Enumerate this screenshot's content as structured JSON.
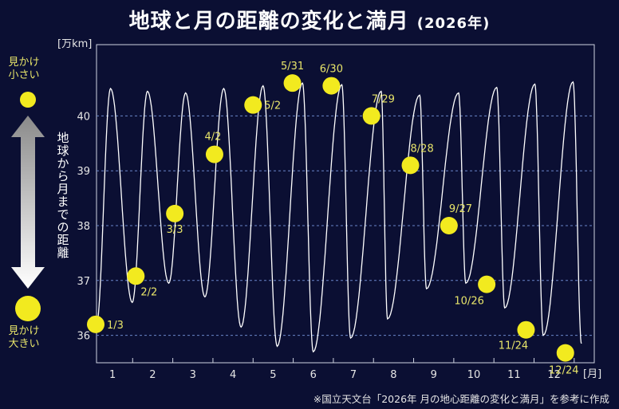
{
  "title": {
    "main": "地球と月の距離の変化と満月",
    "year": "(2026年)"
  },
  "side": {
    "small_label": "見かけ小さい",
    "large_label": "見かけ大きい",
    "axis_caption": "地球から月までの距離"
  },
  "source_note": "※国立天文台「2026年 月の地心距離の変化と満月」を参考に作成",
  "colors": {
    "background": "#0b0f33",
    "moon": "#f2ea1f",
    "label": "#e8e56a",
    "curve": "#ffffff",
    "grid": "#6a86c9"
  },
  "chart_data": {
    "type": "line",
    "ylabel": "[万km]",
    "xlabel": "[月]",
    "ylim": [
      35.5,
      41.3
    ],
    "xlim": [
      0.6,
      13.0
    ],
    "yticks": [
      "36",
      "37",
      "38",
      "39",
      "40"
    ],
    "xticks": [
      "1",
      "2",
      "3",
      "4",
      "5",
      "6",
      "7",
      "8",
      "9",
      "10",
      "11",
      "12"
    ],
    "grid": true,
    "distance_curve": {
      "apogees": [
        [
          0.95,
          40.5
        ],
        [
          1.87,
          40.45
        ],
        [
          2.82,
          40.42
        ],
        [
          3.77,
          40.5
        ],
        [
          4.75,
          40.55
        ],
        [
          5.73,
          40.6
        ],
        [
          6.71,
          40.57
        ],
        [
          7.69,
          40.45
        ],
        [
          8.65,
          40.38
        ],
        [
          9.62,
          40.42
        ],
        [
          10.57,
          40.52
        ],
        [
          11.52,
          40.58
        ],
        [
          12.47,
          40.62
        ]
      ],
      "perigees": [
        [
          0.6,
          36.2
        ],
        [
          1.49,
          36.6
        ],
        [
          2.4,
          36.95
        ],
        [
          3.3,
          36.7
        ],
        [
          4.2,
          36.15
        ],
        [
          5.1,
          35.8
        ],
        [
          6.0,
          35.7
        ],
        [
          6.93,
          35.95
        ],
        [
          7.85,
          36.3
        ],
        [
          8.82,
          36.85
        ],
        [
          9.8,
          36.95
        ],
        [
          10.77,
          36.5
        ],
        [
          11.73,
          36.0
        ],
        [
          12.68,
          35.85
        ]
      ]
    },
    "full_moons": [
      {
        "x": 0.58,
        "y": 36.2,
        "label": "1/3"
      },
      {
        "x": 1.58,
        "y": 37.08,
        "label": "2/2"
      },
      {
        "x": 2.55,
        "y": 38.22,
        "label": "3/3"
      },
      {
        "x": 3.54,
        "y": 39.3,
        "label": "4/2"
      },
      {
        "x": 4.5,
        "y": 40.2,
        "label": "5/2"
      },
      {
        "x": 5.48,
        "y": 40.6,
        "label": "5/31"
      },
      {
        "x": 6.45,
        "y": 40.55,
        "label": "6/30"
      },
      {
        "x": 7.45,
        "y": 40.0,
        "label": "7/29"
      },
      {
        "x": 8.42,
        "y": 39.1,
        "label": "8/28"
      },
      {
        "x": 9.38,
        "y": 38.0,
        "label": "9/27"
      },
      {
        "x": 10.32,
        "y": 36.93,
        "label": "10/26"
      },
      {
        "x": 11.3,
        "y": 36.1,
        "label": "11/24"
      },
      {
        "x": 12.28,
        "y": 35.68,
        "label": "12/24"
      }
    ]
  }
}
